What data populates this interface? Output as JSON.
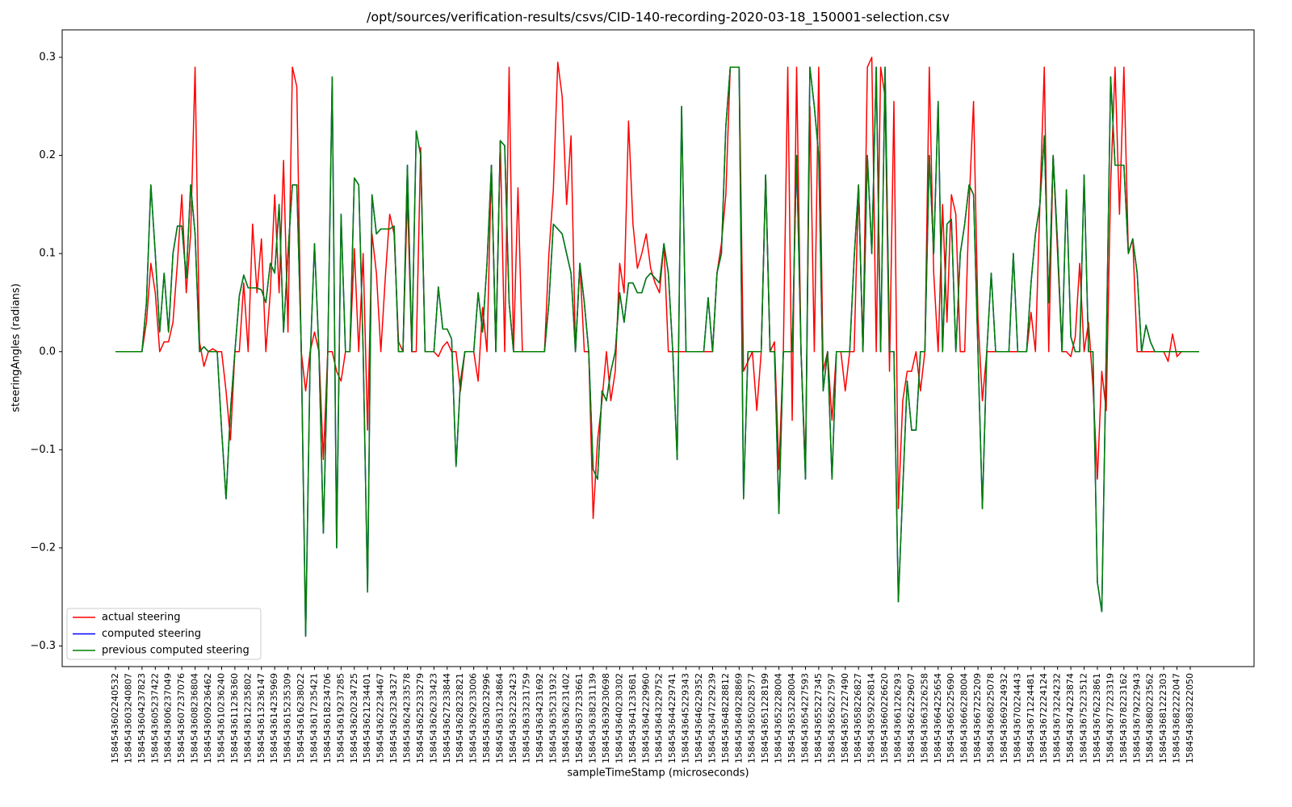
{
  "chart_data": {
    "type": "line",
    "title": "/opt/sources/verification-results/csvs/CID-140-recording-2020-03-18_150001-selection.csv",
    "xlabel": "sampleTimeStamp (microseconds)",
    "ylabel": "steeringAngles (radians)",
    "ylim": [
      -0.321,
      0.328
    ],
    "yticks": [
      {
        "value": -0.3,
        "label": "−0.3"
      },
      {
        "value": -0.2,
        "label": "−0.2"
      },
      {
        "value": -0.1,
        "label": "−0.1"
      },
      {
        "value": 0,
        "label": "0.0"
      },
      0.1,
      0.2,
      0.3
    ],
    "legend": "lower left",
    "categories": [
      "1584543602240532",
      null,
      null,
      "1584543603240807",
      null,
      null,
      "1584543604237823",
      null,
      null,
      "1584543605237422",
      null,
      null,
      "1584543606237049",
      null,
      null,
      "1584543607237076",
      null,
      null,
      "1584543608236804",
      null,
      null,
      "1584543609236462",
      null,
      null,
      "1584543610236240",
      null,
      null,
      "1584543611236360",
      null,
      null,
      "1584543612235802",
      null,
      null,
      "1584543613236147",
      null,
      null,
      "1584543614235969",
      null,
      null,
      "1584543615235309",
      null,
      null,
      "1584543616238022",
      null,
      null,
      "1584543617235421",
      null,
      null,
      "1584543618234706",
      null,
      null,
      "1584543619237285",
      null,
      null,
      "1584543620234725",
      null,
      null,
      "1584543621234401",
      null,
      null,
      "1584543622234467",
      null,
      null,
      "1584543623234327",
      null,
      null,
      "1584543624233578",
      null,
      null,
      "1584543625233279",
      null,
      null,
      "1584543626233423",
      null,
      null,
      "1584543627233844",
      null,
      null,
      "1584543628232821",
      null,
      null,
      "1584543629233006",
      null,
      null,
      "1584543630232996",
      null,
      null,
      "1584543631234864",
      null,
      null,
      "1584543632232423",
      null,
      null,
      "1584543633231759",
      null,
      null,
      "1584543634231692",
      null,
      null,
      "1584543635231932",
      null,
      null,
      "1584543636231402",
      null,
      null,
      "1584543637233661",
      null,
      null,
      "1584543638231139",
      null,
      null,
      "1584543639230698",
      null,
      null,
      "1584543640230302",
      null,
      null,
      "1584543641233681",
      null,
      null,
      "1584543642229960",
      null,
      null,
      "1584543643229752",
      null,
      null,
      "1584543644229741",
      null,
      null,
      "1584543645229343",
      null,
      null,
      "1584543646229352",
      null,
      null,
      "1584543647229239",
      null,
      null,
      "1584543648228812",
      null,
      null,
      "1584543649228869",
      null,
      null,
      "1584543650228577",
      null,
      null,
      "1584543651228199",
      null,
      null,
      "1584543652228004",
      null,
      null,
      "1584543653228004",
      null,
      null,
      "1584543654227593",
      null,
      null,
      "1584543655227345",
      null,
      null,
      "1584543656227597",
      null,
      null,
      "1584543657227490",
      null,
      null,
      "1584543658226827",
      null,
      null,
      "1584543659226814",
      null,
      null,
      "1584543660226620",
      null,
      null,
      "1584543661226293",
      null,
      null,
      "1584543662229607",
      null,
      null,
      "1584543663226258",
      null,
      null,
      "1584543664225654",
      null,
      null,
      "1584543665225690",
      null,
      null,
      "1584543666228004",
      null,
      null,
      "1584543667225209",
      null,
      null,
      "1584543668225078",
      null,
      null,
      "1584543669224932",
      null,
      null,
      "1584543670224443",
      null,
      null,
      "1584543671224481",
      null,
      null,
      "1584543672224124",
      null,
      null,
      "1584543673224232",
      null,
      null,
      "1584543674223874",
      null,
      null,
      "1584543675223512",
      null,
      null,
      "1584543676223861",
      null,
      null,
      "1584543677223319",
      null,
      null,
      "1584543678223162",
      null,
      null,
      "1584543679222943",
      null,
      null,
      "1584543680223562",
      null,
      null,
      "1584543681222303",
      null,
      null,
      "1584543682222047",
      null,
      null,
      "1584543683222050",
      null,
      null
    ],
    "series": [
      {
        "name": "actual steering",
        "color": "#ff0000",
        "values": [
          0,
          0,
          0,
          0,
          0,
          0,
          0,
          0.03,
          0.09,
          0.06,
          0,
          0.01,
          0.01,
          0.03,
          0.09,
          0.16,
          0.06,
          0.12,
          0.29,
          0.01,
          -0.015,
          0,
          0.003,
          0,
          0,
          -0.04,
          -0.09,
          0,
          0,
          0.07,
          0,
          0.13,
          0.06,
          0.115,
          0,
          0.06,
          0.16,
          0.06,
          0.195,
          0.02,
          0.29,
          0.27,
          0,
          -0.04,
          0,
          0.02,
          0,
          -0.11,
          0,
          0,
          -0.02,
          -0.03,
          0,
          0,
          0.105,
          0,
          0.1,
          -0.08,
          0.12,
          0.08,
          0,
          0.075,
          0.14,
          0.12,
          0.01,
          0,
          0.16,
          0,
          0,
          0.208,
          0,
          0,
          0,
          -0.005,
          0.005,
          0.01,
          0,
          0,
          -0.04,
          0,
          0,
          0,
          -0.03,
          0.045,
          0,
          0.19,
          0,
          0.215,
          0,
          0.29,
          0,
          0.167,
          0,
          0,
          0,
          0,
          0,
          0,
          0.1,
          0.165,
          0.295,
          0.26,
          0.15,
          0.22,
          0,
          0.09,
          0,
          0,
          -0.17,
          -0.09,
          -0.05,
          0,
          -0.05,
          -0.02,
          0.09,
          0.06,
          0.235,
          0.13,
          0.085,
          0.1,
          0.12,
          0.085,
          0.07,
          0.06,
          0.11,
          0,
          0,
          0,
          0,
          0,
          0,
          0,
          0,
          0,
          0,
          0,
          0.08,
          0.11,
          0.16,
          0.29,
          0.29,
          0.29,
          -0.02,
          -0.01,
          0,
          -0.06,
          0,
          0.18,
          0,
          0.01,
          -0.12,
          0,
          0.29,
          -0.07,
          0.29,
          0,
          -0.12,
          0.25,
          0,
          0.29,
          -0.02,
          0,
          -0.07,
          0,
          0,
          -0.04,
          0,
          0,
          0.17,
          0,
          0.29,
          0.3,
          0,
          0.29,
          0.26,
          -0.02,
          0.255,
          -0.16,
          -0.05,
          -0.02,
          -0.02,
          0,
          -0.04,
          0,
          0.29,
          0.08,
          0,
          0.15,
          0.03,
          0.16,
          0.14,
          0,
          0,
          0.15,
          0.255,
          0.035,
          -0.05,
          0,
          0,
          0,
          0,
          0,
          0,
          0,
          0,
          0,
          0,
          0.04,
          0,
          0.15,
          0.29,
          0,
          0.2,
          0.1,
          0,
          0,
          -0.005,
          0.015,
          0.09,
          0,
          0.03,
          -0.035,
          -0.13,
          -0.02,
          -0.06,
          0.17,
          0.29,
          0.14,
          0.29,
          0.1,
          0.115,
          0,
          0,
          0,
          0,
          0,
          0,
          0,
          -0.01,
          0.018,
          -0.005,
          0,
          0,
          0,
          0,
          0
        ]
      },
      {
        "name": "computed steering",
        "color": "#0000ff",
        "values": [
          0,
          0,
          0,
          0,
          0,
          0,
          0,
          0.05,
          0.17,
          0.1,
          0.02,
          0.08,
          0.02,
          0.1,
          0.128,
          0.128,
          0.075,
          0.17,
          0.12,
          0,
          0.005,
          0,
          0,
          0,
          -0.08,
          -0.15,
          -0.06,
          0,
          0.057,
          0.078,
          0.065,
          0.065,
          0.065,
          0.063,
          0.05,
          0.09,
          0.08,
          0.15,
          0.02,
          0.1,
          0.17,
          0.17,
          0.005,
          -0.29,
          -0.01,
          0.11,
          0,
          -0.185,
          0,
          0.28,
          -0.2,
          0.14,
          0,
          0,
          0.177,
          0.17,
          0,
          -0.245,
          0.16,
          0.12,
          0.125,
          0.125,
          0.125,
          0.128,
          0,
          0,
          0.19,
          0,
          0.225,
          0.2,
          0,
          0,
          0,
          0.066,
          0.023,
          0.023,
          0.013,
          -0.117,
          -0.03,
          0,
          0,
          0,
          0.06,
          0.02,
          0.09,
          0.19,
          0,
          0.215,
          0.21,
          0.05,
          0,
          0,
          0,
          0,
          0,
          0,
          0,
          0,
          0.05,
          0.13,
          0.125,
          0.12,
          0.1,
          0.08,
          0,
          0.09,
          0.05,
          0,
          -0.12,
          -0.13,
          -0.04,
          -0.05,
          -0.02,
          0,
          0.06,
          0.03,
          0.07,
          0.07,
          0.06,
          0.06,
          0.075,
          0.08,
          0.075,
          0.07,
          0.11,
          0.08,
          0,
          -0.11,
          0.25,
          0,
          0,
          0,
          0,
          0,
          0.055,
          0,
          0.08,
          0.1,
          0.23,
          0.29,
          0.29,
          0.29,
          -0.15,
          0,
          0,
          0,
          0,
          0.18,
          0,
          0,
          -0.165,
          0,
          0,
          0,
          0.2,
          0,
          -0.13,
          0.29,
          0.25,
          0.2,
          -0.04,
          0,
          -0.13,
          0,
          0,
          0,
          0,
          0.095,
          0.17,
          0,
          0.2,
          0.1,
          0.29,
          0,
          0.29,
          0,
          0,
          -0.255,
          -0.14,
          -0.03,
          -0.08,
          -0.08,
          0,
          0,
          0.2,
          0.1,
          0.255,
          0,
          0.13,
          0.135,
          0,
          0.1,
          0.13,
          0.17,
          0.16,
          0,
          -0.16,
          0,
          0.08,
          0,
          0,
          0,
          0,
          0.1,
          0,
          0,
          0,
          0.07,
          0.12,
          0.15,
          0.22,
          0.05,
          0.2,
          0.11,
          0,
          0.165,
          0.015,
          0,
          0,
          0.18,
          0,
          0,
          -0.235,
          -0.265,
          0,
          0.28,
          0.19,
          0.19,
          0.19,
          0.1,
          0.115,
          0.08,
          0,
          0.027,
          0.01,
          0,
          0,
          0,
          0,
          0,
          0,
          0,
          0,
          0,
          0,
          0
        ]
      },
      {
        "name": "previous computed steering",
        "color": "#008000",
        "values": [
          0,
          0,
          0,
          0,
          0,
          0,
          0,
          0.05,
          0.17,
          0.1,
          0.02,
          0.08,
          0.02,
          0.1,
          0.128,
          0.128,
          0.075,
          0.17,
          0.12,
          0,
          0.005,
          0,
          0,
          0,
          -0.08,
          -0.15,
          -0.06,
          0,
          0.057,
          0.078,
          0.065,
          0.065,
          0.065,
          0.063,
          0.05,
          0.09,
          0.08,
          0.15,
          0.02,
          0.1,
          0.17,
          0.17,
          0.005,
          -0.29,
          -0.01,
          0.11,
          0,
          -0.185,
          0,
          0.28,
          -0.2,
          0.14,
          0,
          0,
          0.177,
          0.17,
          0,
          -0.245,
          0.16,
          0.12,
          0.125,
          0.125,
          0.125,
          0.128,
          0,
          0,
          0.19,
          0,
          0.225,
          0.2,
          0,
          0,
          0,
          0.066,
          0.023,
          0.023,
          0.013,
          -0.117,
          -0.03,
          0,
          0,
          0,
          0.06,
          0.02,
          0.09,
          0.19,
          0,
          0.215,
          0.21,
          0.05,
          0,
          0,
          0,
          0,
          0,
          0,
          0,
          0,
          0.05,
          0.13,
          0.125,
          0.12,
          0.1,
          0.08,
          0,
          0.09,
          0.05,
          0,
          -0.12,
          -0.13,
          -0.04,
          -0.05,
          -0.02,
          0,
          0.06,
          0.03,
          0.07,
          0.07,
          0.06,
          0.06,
          0.075,
          0.08,
          0.075,
          0.07,
          0.11,
          0.08,
          0,
          -0.11,
          0.25,
          0,
          0,
          0,
          0,
          0,
          0.055,
          0,
          0.08,
          0.1,
          0.23,
          0.29,
          0.29,
          0.29,
          -0.15,
          0,
          0,
          0,
          0,
          0.18,
          0,
          0,
          -0.165,
          0,
          0,
          0,
          0.2,
          0,
          -0.13,
          0.29,
          0.25,
          0.2,
          -0.04,
          0,
          -0.13,
          0,
          0,
          0,
          0,
          0.095,
          0.17,
          0,
          0.2,
          0.1,
          0.29,
          0,
          0.29,
          0,
          0,
          -0.255,
          -0.14,
          -0.03,
          -0.08,
          -0.08,
          0,
          0,
          0.2,
          0.1,
          0.255,
          0,
          0.13,
          0.135,
          0,
          0.1,
          0.13,
          0.17,
          0.16,
          0,
          -0.16,
          0,
          0.08,
          0,
          0,
          0,
          0,
          0.1,
          0,
          0,
          0,
          0.07,
          0.12,
          0.15,
          0.22,
          0.05,
          0.2,
          0.11,
          0,
          0.165,
          0.015,
          0,
          0,
          0.18,
          0,
          0,
          -0.235,
          -0.265,
          0,
          0.28,
          0.19,
          0.19,
          0.19,
          0.1,
          0.115,
          0.08,
          0,
          0.027,
          0.01,
          0,
          0,
          0,
          0,
          0,
          0,
          0,
          0,
          0,
          0,
          0
        ]
      }
    ]
  }
}
